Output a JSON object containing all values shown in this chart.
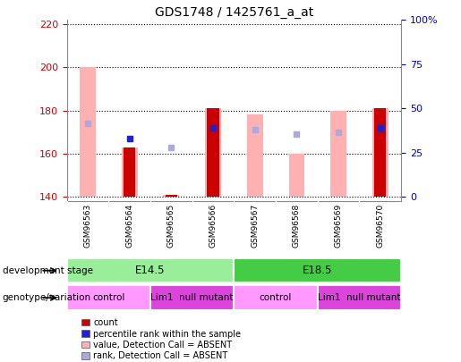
{
  "title": "GDS1748 / 1425761_a_at",
  "samples": [
    "GSM96563",
    "GSM96564",
    "GSM96565",
    "GSM96566",
    "GSM96567",
    "GSM96568",
    "GSM96569",
    "GSM96570"
  ],
  "ylim_left": [
    138,
    222
  ],
  "yticks_left": [
    140,
    160,
    180,
    200,
    220
  ],
  "yticks_right": [
    0,
    25,
    50,
    75,
    100
  ],
  "yright_labels": [
    "0",
    "25",
    "50",
    "75",
    "100%"
  ],
  "bar_bottom": 140,
  "pink_bars_values": [
    200,
    163,
    141,
    181,
    178,
    160,
    180,
    181
  ],
  "pink_bars_color": "#ffb0b0",
  "red_bars_values": [
    null,
    163,
    141,
    181,
    null,
    null,
    null,
    181
  ],
  "red_bars_color": "#cc0000",
  "blue_sq_values": [
    null,
    167,
    null,
    172,
    null,
    null,
    null,
    172
  ],
  "blue_sq_color": "#2222cc",
  "lblue_sq_values": [
    174,
    null,
    163,
    null,
    171,
    169,
    170,
    null
  ],
  "lblue_sq_color": "#aaaadd",
  "dev_groups": [
    {
      "label": "E14.5",
      "start": 0,
      "end": 3,
      "color": "#99ee99"
    },
    {
      "label": "E18.5",
      "start": 4,
      "end": 7,
      "color": "#44cc44"
    }
  ],
  "gen_groups": [
    {
      "label": "control",
      "start": 0,
      "end": 1,
      "color": "#ff99ff"
    },
    {
      "label": "Lim1  null mutant",
      "start": 2,
      "end": 3,
      "color": "#dd44dd"
    },
    {
      "label": "control",
      "start": 4,
      "end": 5,
      "color": "#ff99ff"
    },
    {
      "label": "Lim1  null mutant",
      "start": 6,
      "end": 7,
      "color": "#dd44dd"
    }
  ],
  "legend_items": [
    {
      "label": "count",
      "color": "#cc0000"
    },
    {
      "label": "percentile rank within the sample",
      "color": "#2222cc"
    },
    {
      "label": "value, Detection Call = ABSENT",
      "color": "#ffb0b0"
    },
    {
      "label": "rank, Detection Call = ABSENT",
      "color": "#aaaadd"
    }
  ],
  "ann_labels": [
    "development stage",
    "genotype/variation"
  ],
  "left_color": "#cc0000",
  "right_color": "#0000cc",
  "bg_color": "#ffffff",
  "xcell_color": "#cccccc",
  "bar_width": 0.38,
  "red_bar_width": 0.28
}
